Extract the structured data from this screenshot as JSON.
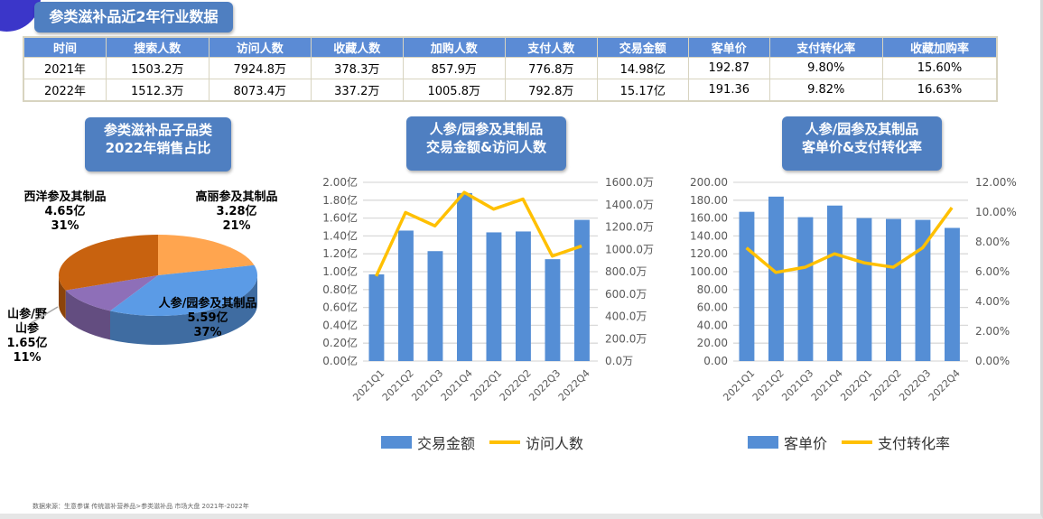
{
  "title": "参类滋补品近2年行业数据",
  "table": {
    "headers": [
      "时间",
      "搜索人数",
      "访问人数",
      "收藏人数",
      "加购人数",
      "支付人数",
      "交易金额",
      "客单价",
      "支付转化率",
      "收藏加购率"
    ],
    "rows": [
      [
        "2021年",
        "1503.2万",
        "7924.8万",
        "378.3万",
        "857.9万",
        "776.8万",
        "14.98亿",
        "192.87",
        "9.80%",
        "15.60%"
      ],
      [
        "2022年",
        "1512.3万",
        "8073.4万",
        "337.2万",
        "1005.8万",
        "792.8万",
        "15.17亿",
        "191.36",
        "9.82%",
        "16.63%"
      ]
    ]
  },
  "colors": {
    "bar": "#558ed5",
    "line": "#ffc000",
    "title_bg": "#4f7fc1"
  },
  "chart_data": [
    {
      "type": "pie",
      "title": "参类滋补品子品类\n2022年销售占比",
      "title_lines": [
        "参类滋补品子品类",
        "2022年销售占比"
      ],
      "slices": [
        {
          "name": "高丽参及其制品",
          "value": "3.28亿",
          "percent": 21,
          "color": "#ffa54f"
        },
        {
          "name": "人参/园参及其制品",
          "value": "5.59亿",
          "percent": 37,
          "color": "#5b9be6"
        },
        {
          "name_lines": [
            "山参/野",
            "山参"
          ],
          "name": "山参/野山参",
          "value": "1.65亿",
          "percent": 11,
          "color": "#8e6fb8"
        },
        {
          "name": "西洋参及其制品",
          "value": "4.65亿",
          "percent": 31,
          "color": "#c8620f"
        }
      ]
    },
    {
      "type": "bar+line",
      "title_lines": [
        "人参/园参及其制品",
        "交易金额&访问人数"
      ],
      "categories": [
        "2021Q1",
        "2021Q2",
        "2021Q3",
        "2021Q4",
        "2022Q1",
        "2022Q2",
        "2022Q3",
        "2022Q4"
      ],
      "series": [
        {
          "name": "交易金额",
          "type": "bar",
          "axis": "left",
          "values": [
            0.97,
            1.46,
            1.23,
            1.88,
            1.44,
            1.45,
            1.14,
            1.58
          ]
        },
        {
          "name": "访问人数",
          "type": "line",
          "axis": "right",
          "values": [
            760,
            1330,
            1210,
            1510,
            1360,
            1450,
            940,
            1030
          ]
        }
      ],
      "ylim_left": [
        0,
        2
      ],
      "ylim_right": [
        0,
        1600
      ],
      "yticks_left": [
        "0.00亿",
        "0.20亿",
        "0.40亿",
        "0.60亿",
        "0.80亿",
        "1.00亿",
        "1.20亿",
        "1.40亿",
        "1.60亿",
        "1.80亿",
        "2.00亿"
      ],
      "yticks_right": [
        "0.0万",
        "200.0万",
        "400.0万",
        "600.0万",
        "800.0万",
        "1000.0万",
        "1200.0万",
        "1400.0万",
        "1600.0万"
      ],
      "legend": "bottom",
      "grid": true
    },
    {
      "type": "bar+line",
      "title_lines": [
        "人参/园参及其制品",
        "客单价&支付转化率"
      ],
      "categories": [
        "2021Q1",
        "2021Q2",
        "2021Q3",
        "2021Q4",
        "2022Q1",
        "2022Q2",
        "2022Q3",
        "2022Q4"
      ],
      "series": [
        {
          "name": "客单价",
          "type": "bar",
          "axis": "left",
          "values": [
            167,
            184,
            161,
            174,
            160,
            159,
            158,
            149
          ]
        },
        {
          "name": "支付转化率",
          "type": "line",
          "axis": "right",
          "values": [
            7.6,
            5.95,
            6.3,
            7.2,
            6.6,
            6.3,
            7.6,
            10.3
          ]
        }
      ],
      "ylim_left": [
        0,
        200
      ],
      "ylim_right": [
        0,
        12
      ],
      "yticks_left": [
        "0.00",
        "20.00",
        "40.00",
        "60.00",
        "80.00",
        "100.00",
        "120.00",
        "140.00",
        "160.00",
        "180.00",
        "200.00"
      ],
      "yticks_right": [
        "0.00%",
        "2.00%",
        "4.00%",
        "6.00%",
        "8.00%",
        "10.00%",
        "12.00%"
      ],
      "legend": "bottom",
      "grid": true
    }
  ],
  "footer": "数据来源：生意参谋 传统滋补营养品>参类滋补品 市场大盘 2021年-2022年"
}
